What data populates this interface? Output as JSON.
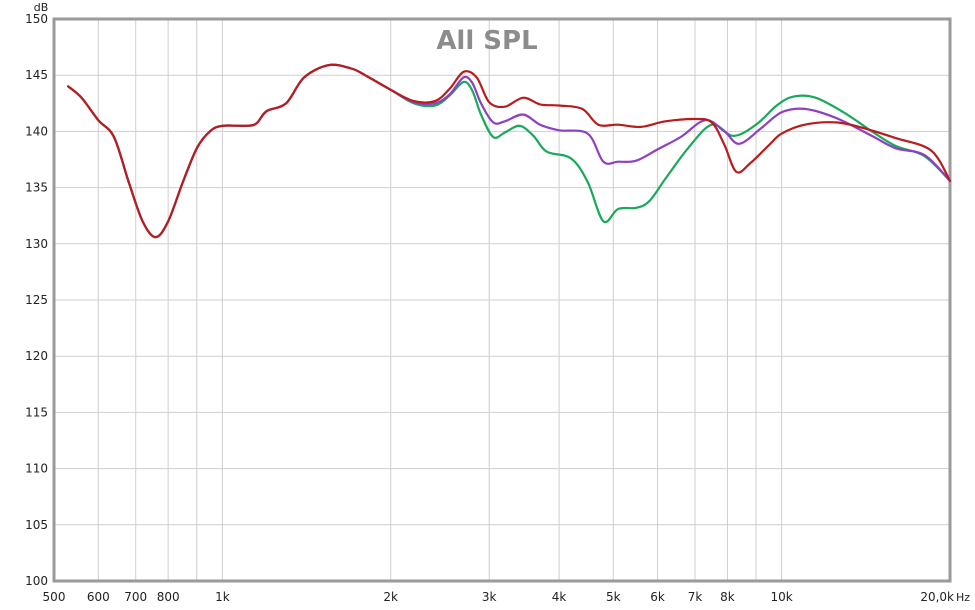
{
  "chart_data": {
    "type": "line",
    "title": "All SPL",
    "ylabel": "dB",
    "xlabel": "Hz",
    "xscale": "log",
    "xlim": [
      500,
      20000
    ],
    "ylim": [
      100,
      150
    ],
    "grid": true,
    "x_major_ticks": [
      {
        "value": 500,
        "label": "500"
      },
      {
        "value": 600,
        "label": "600"
      },
      {
        "value": 700,
        "label": "700"
      },
      {
        "value": 800,
        "label": "800"
      },
      {
        "value": 1000,
        "label": "1k"
      },
      {
        "value": 2000,
        "label": "2k"
      },
      {
        "value": 3000,
        "label": "3k"
      },
      {
        "value": 4000,
        "label": "4k"
      },
      {
        "value": 5000,
        "label": "5k"
      },
      {
        "value": 6000,
        "label": "6k"
      },
      {
        "value": 7000,
        "label": "7k"
      },
      {
        "value": 8000,
        "label": "8k"
      },
      {
        "value": 10000,
        "label": "10k"
      },
      {
        "value": 20000,
        "label": "20,0k"
      }
    ],
    "x_minor_grid": [
      900,
      9000
    ],
    "y_ticks": [
      100,
      105,
      110,
      115,
      120,
      125,
      130,
      135,
      140,
      145,
      150
    ],
    "series": [
      {
        "color": "#1aa85a",
        "points": [
          [
            530,
            144.0
          ],
          [
            560,
            143.0
          ],
          [
            600,
            141.0
          ],
          [
            640,
            139.5
          ],
          [
            680,
            135.5
          ],
          [
            720,
            132.0
          ],
          [
            760,
            130.6
          ],
          [
            800,
            132.0
          ],
          [
            850,
            135.5
          ],
          [
            900,
            138.5
          ],
          [
            950,
            140.0
          ],
          [
            1000,
            140.5
          ],
          [
            1100,
            140.5
          ],
          [
            1150,
            140.7
          ],
          [
            1200,
            141.8
          ],
          [
            1300,
            142.5
          ],
          [
            1400,
            144.8
          ],
          [
            1550,
            145.9
          ],
          [
            1700,
            145.6
          ],
          [
            1800,
            145.0
          ],
          [
            2000,
            143.7
          ],
          [
            2200,
            142.5
          ],
          [
            2400,
            142.3
          ],
          [
            2550,
            143.2
          ],
          [
            2700,
            144.4
          ],
          [
            2800,
            143.6
          ],
          [
            2900,
            141.5
          ],
          [
            3050,
            139.5
          ],
          [
            3200,
            139.9
          ],
          [
            3400,
            140.5
          ],
          [
            3600,
            139.6
          ],
          [
            3800,
            138.2
          ],
          [
            4200,
            137.6
          ],
          [
            4500,
            135.5
          ],
          [
            4800,
            132.0
          ],
          [
            5100,
            133.1
          ],
          [
            5500,
            133.2
          ],
          [
            5800,
            133.8
          ],
          [
            6200,
            135.8
          ],
          [
            6800,
            138.5
          ],
          [
            7500,
            140.6
          ],
          [
            8200,
            139.6
          ],
          [
            9000,
            140.6
          ],
          [
            9800,
            142.3
          ],
          [
            10500,
            143.1
          ],
          [
            11500,
            143.0
          ],
          [
            13000,
            141.6
          ],
          [
            14500,
            140.0
          ],
          [
            16000,
            138.7
          ],
          [
            18000,
            137.8
          ],
          [
            20000,
            135.6
          ]
        ]
      },
      {
        "color": "#8e3fc2",
        "points": [
          [
            530,
            144.0
          ],
          [
            560,
            143.0
          ],
          [
            600,
            141.0
          ],
          [
            640,
            139.5
          ],
          [
            680,
            135.5
          ],
          [
            720,
            132.0
          ],
          [
            760,
            130.6
          ],
          [
            800,
            132.0
          ],
          [
            850,
            135.5
          ],
          [
            900,
            138.5
          ],
          [
            950,
            140.0
          ],
          [
            1000,
            140.5
          ],
          [
            1100,
            140.5
          ],
          [
            1150,
            140.7
          ],
          [
            1200,
            141.8
          ],
          [
            1300,
            142.5
          ],
          [
            1400,
            144.8
          ],
          [
            1550,
            145.9
          ],
          [
            1700,
            145.6
          ],
          [
            1800,
            145.0
          ],
          [
            2000,
            143.7
          ],
          [
            2200,
            142.6
          ],
          [
            2400,
            142.5
          ],
          [
            2550,
            143.3
          ],
          [
            2700,
            144.8
          ],
          [
            2800,
            144.3
          ],
          [
            2900,
            142.5
          ],
          [
            3050,
            140.8
          ],
          [
            3200,
            140.9
          ],
          [
            3450,
            141.5
          ],
          [
            3700,
            140.6
          ],
          [
            4000,
            140.1
          ],
          [
            4500,
            139.8
          ],
          [
            4800,
            137.3
          ],
          [
            5100,
            137.3
          ],
          [
            5500,
            137.4
          ],
          [
            6000,
            138.4
          ],
          [
            6600,
            139.5
          ],
          [
            7300,
            141.0
          ],
          [
            7900,
            140.0
          ],
          [
            8400,
            138.9
          ],
          [
            9200,
            140.3
          ],
          [
            10000,
            141.7
          ],
          [
            11000,
            142.0
          ],
          [
            12500,
            141.2
          ],
          [
            14500,
            139.6
          ],
          [
            16000,
            138.5
          ],
          [
            18000,
            137.9
          ],
          [
            20000,
            135.6
          ]
        ]
      },
      {
        "color": "#b81c1c",
        "points": [
          [
            530,
            144.0
          ],
          [
            560,
            143.0
          ],
          [
            600,
            141.0
          ],
          [
            640,
            139.5
          ],
          [
            680,
            135.5
          ],
          [
            720,
            132.0
          ],
          [
            760,
            130.6
          ],
          [
            800,
            132.0
          ],
          [
            850,
            135.5
          ],
          [
            900,
            138.5
          ],
          [
            950,
            140.0
          ],
          [
            1000,
            140.5
          ],
          [
            1100,
            140.5
          ],
          [
            1150,
            140.7
          ],
          [
            1200,
            141.8
          ],
          [
            1300,
            142.5
          ],
          [
            1400,
            144.8
          ],
          [
            1550,
            145.9
          ],
          [
            1700,
            145.6
          ],
          [
            1800,
            145.0
          ],
          [
            2000,
            143.7
          ],
          [
            2200,
            142.7
          ],
          [
            2400,
            142.7
          ],
          [
            2550,
            143.8
          ],
          [
            2700,
            145.3
          ],
          [
            2850,
            144.8
          ],
          [
            3000,
            142.6
          ],
          [
            3200,
            142.2
          ],
          [
            3450,
            143.0
          ],
          [
            3700,
            142.4
          ],
          [
            4000,
            142.3
          ],
          [
            4400,
            142.0
          ],
          [
            4700,
            140.6
          ],
          [
            5100,
            140.6
          ],
          [
            5600,
            140.4
          ],
          [
            6200,
            140.9
          ],
          [
            7000,
            141.1
          ],
          [
            7500,
            140.8
          ],
          [
            7900,
            138.8
          ],
          [
            8300,
            136.4
          ],
          [
            8800,
            137.2
          ],
          [
            9500,
            138.8
          ],
          [
            10000,
            139.8
          ],
          [
            11000,
            140.6
          ],
          [
            12500,
            140.8
          ],
          [
            14000,
            140.3
          ],
          [
            16000,
            139.4
          ],
          [
            18500,
            138.3
          ],
          [
            20000,
            135.6
          ]
        ]
      }
    ]
  }
}
